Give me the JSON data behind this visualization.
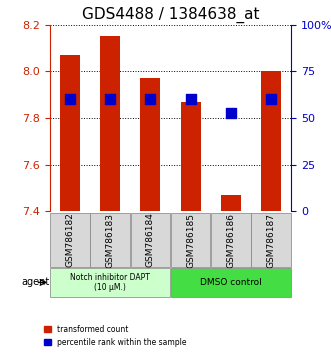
{
  "title": "GDS4488 / 1384638_at",
  "samples": [
    "GSM786182",
    "GSM786183",
    "GSM786184",
    "GSM786185",
    "GSM786186",
    "GSM786187"
  ],
  "red_values": [
    8.07,
    8.15,
    7.97,
    7.87,
    7.47,
    8.0
  ],
  "blue_percentiles": [
    60,
    60,
    60,
    60,
    53,
    60
  ],
  "ylim_left": [
    7.4,
    8.2
  ],
  "ylim_right": [
    0,
    100
  ],
  "yticks_left": [
    7.4,
    7.6,
    7.8,
    8.0,
    8.2
  ],
  "yticks_right": [
    0,
    25,
    50,
    75,
    100
  ],
  "ytick_labels_right": [
    "0",
    "25",
    "50",
    "75",
    "100%"
  ],
  "bar_color": "#cc2200",
  "dot_color": "#0000cc",
  "group1_label": "Notch inhibitor DAPT\n(10 μM.)",
  "group2_label": "DMSO control",
  "group1_color": "#ccffcc",
  "group2_color": "#44dd44",
  "legend1": "transformed count",
  "legend2": "percentile rank within the sample",
  "agent_label": "agent",
  "bar_width": 0.5,
  "dot_size": 60,
  "grid_color": "black",
  "title_fontsize": 11,
  "tick_fontsize": 8,
  "label_fontsize": 8
}
